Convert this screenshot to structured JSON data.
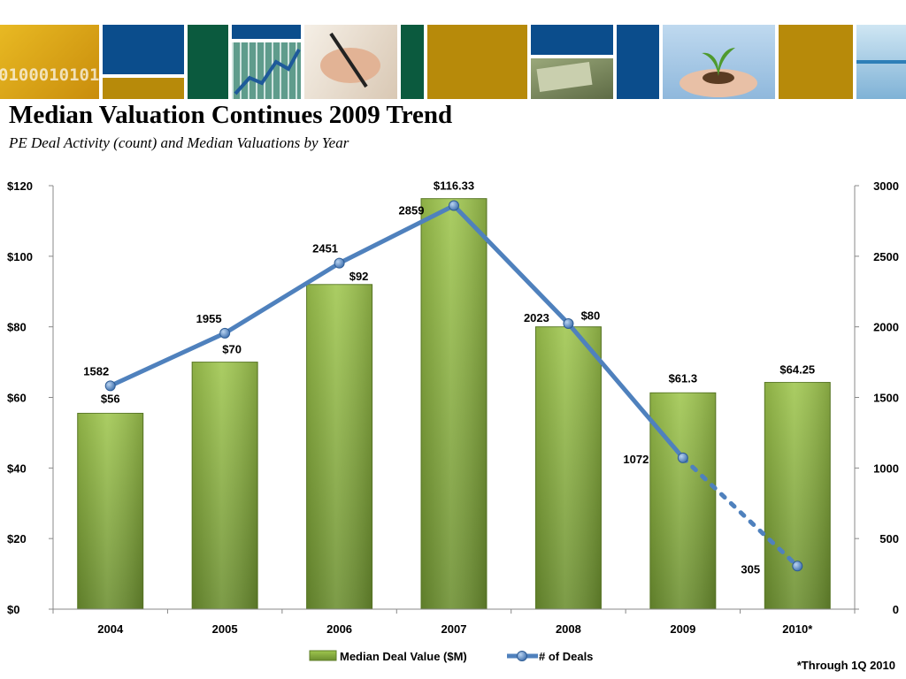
{
  "title": "Median Valuation Continues 2009 Trend",
  "subtitle": "PE Deal Activity (count) and  Median Valuations by Year",
  "footnote": "*Through 1Q 2010",
  "banner": {
    "digits_text": "0100010101",
    "colors": {
      "blue": "#0b4d8c",
      "gold": "#b78a0a",
      "green": "#0b5a3e"
    }
  },
  "chart_data": {
    "type": "bar",
    "categories": [
      "2004",
      "2005",
      "2006",
      "2007",
      "2008",
      "2009",
      "2010*"
    ],
    "series": [
      {
        "name": "Median Deal Value ($M)",
        "type": "bar",
        "axis": "left",
        "values": [
          55.5,
          70,
          92,
          116.33,
          80,
          61.3,
          64.25
        ],
        "labels": [
          "$56",
          "$70",
          "$92",
          "$116.33",
          "$80",
          "$61.3",
          "$64.25"
        ],
        "color": "#8db53f"
      },
      {
        "name": "# of Deals",
        "type": "line",
        "axis": "right",
        "values": [
          1582,
          1955,
          2451,
          2859,
          2023,
          1072,
          305
        ],
        "labels": [
          "1582",
          "1955",
          "2451",
          "2859",
          "2023",
          "1072",
          "305"
        ],
        "dotted_last_segment": true,
        "color": "#4f81bd"
      }
    ],
    "y_left": {
      "ticks": [
        "$0",
        "$20",
        "$40",
        "$60",
        "$80",
        "$100",
        "$120"
      ],
      "range": [
        0,
        120
      ]
    },
    "y_right": {
      "ticks": [
        "0",
        "500",
        "1000",
        "1500",
        "2000",
        "2500",
        "3000"
      ],
      "range": [
        0,
        3000
      ]
    },
    "grid": false,
    "legend": "bottom"
  }
}
